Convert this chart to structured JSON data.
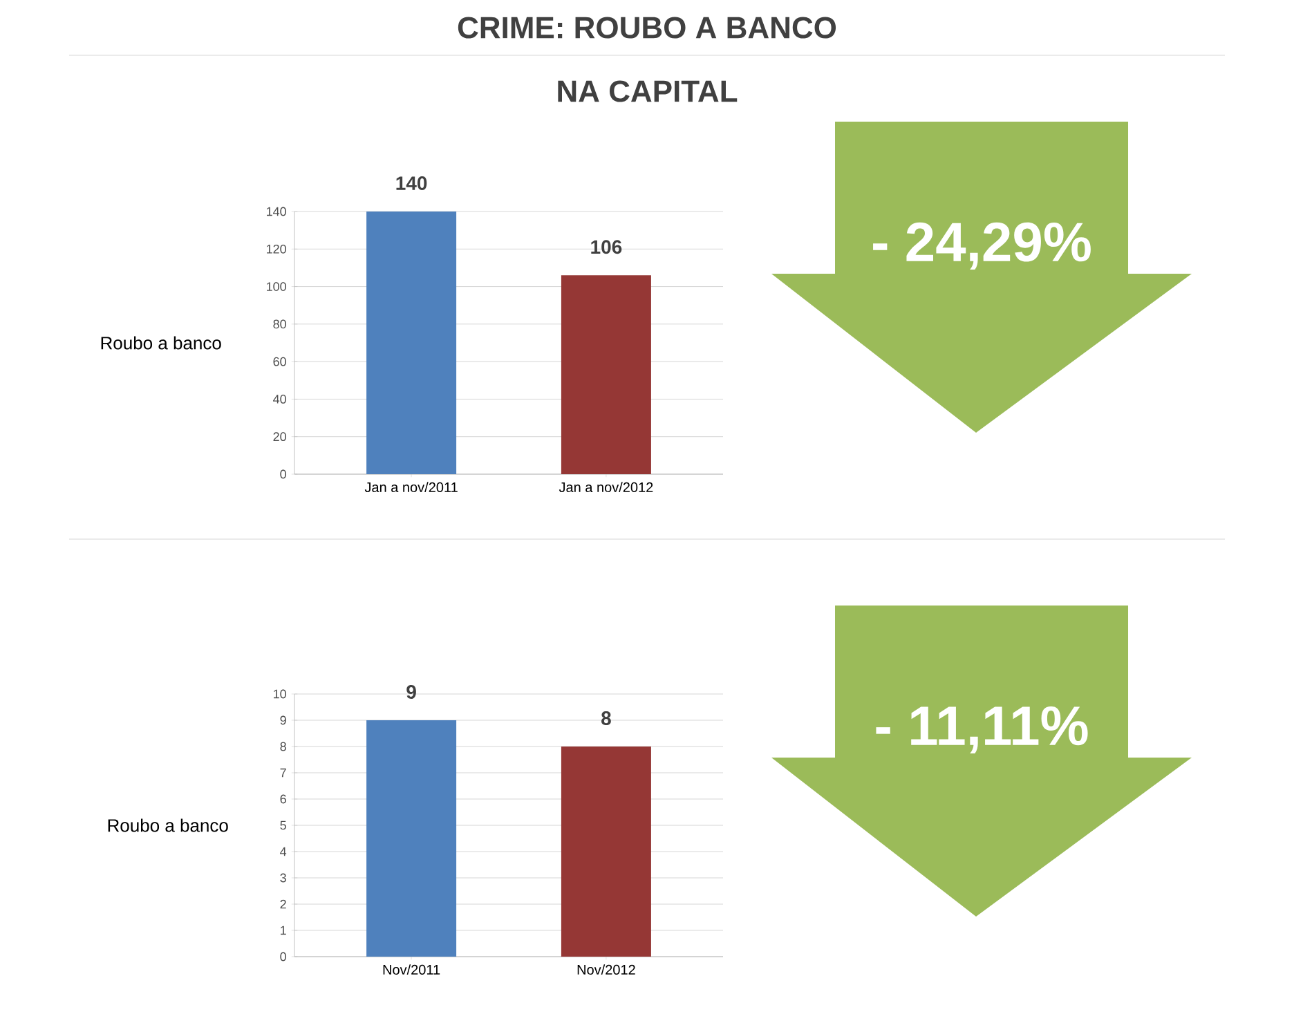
{
  "chart_data": [
    {
      "type": "bar",
      "title": "CRIME: ROUBO A BANCO",
      "subtitle": "NA CAPITAL",
      "ylabel": "Roubo a banco",
      "categories": [
        "Jan a nov/2011",
        "Jan a nov/2012"
      ],
      "values": [
        140,
        106
      ],
      "colors": [
        "#4f81bd",
        "#953735"
      ],
      "ylim": [
        0,
        140
      ],
      "yticks": [
        0,
        20,
        40,
        60,
        80,
        100,
        120,
        140
      ],
      "grid": "y",
      "data_labels": true,
      "annotations": [
        "- 24,29%"
      ]
    },
    {
      "type": "bar",
      "ylabel": "Roubo a banco",
      "categories": [
        "Nov/2011",
        "Nov/2012"
      ],
      "values": [
        9,
        8
      ],
      "colors": [
        "#4f81bd",
        "#953735"
      ],
      "ylim": [
        0,
        10
      ],
      "yticks": [
        0,
        1,
        2,
        3,
        4,
        5,
        6,
        7,
        8,
        9,
        10
      ],
      "grid": "y",
      "data_labels": true,
      "annotations": [
        "- 11,11%"
      ]
    }
  ]
}
